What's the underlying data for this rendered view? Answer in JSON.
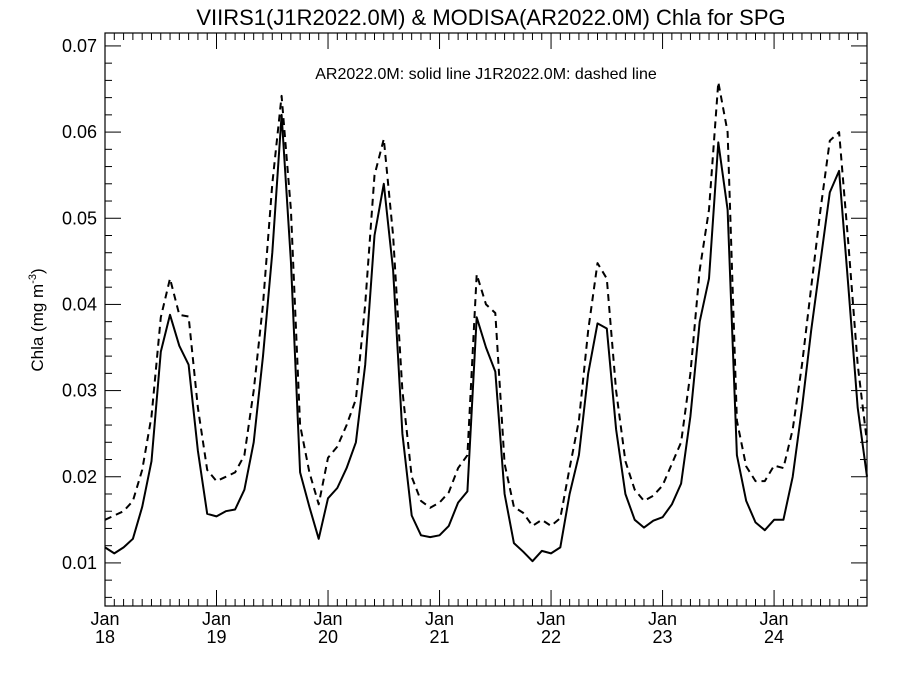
{
  "chart_data": {
    "type": "line",
    "title": "VIIRS1(J1R2022.0M) & MODISA(AR2022.0M)  Chla for SPG",
    "annotation": "AR2022.0M: solid line   J1R2022.0M: dashed line",
    "ylabel_main": "Chla (mg m",
    "ylabel_sup": "-3",
    "ylabel_end": ")",
    "xlabel": "",
    "ylim": [
      0.005,
      0.0715
    ],
    "xlim": [
      0,
      82
    ],
    "yticks": [
      {
        "v": 0.01,
        "label": "0.01"
      },
      {
        "v": 0.02,
        "label": "0.02"
      },
      {
        "v": 0.03,
        "label": "0.03"
      },
      {
        "v": 0.04,
        "label": "0.04"
      },
      {
        "v": 0.05,
        "label": "0.05"
      },
      {
        "v": 0.06,
        "label": "0.06"
      },
      {
        "v": 0.07,
        "label": "0.07"
      }
    ],
    "xticks": [
      {
        "v": 0,
        "month": "Jan",
        "year": "18"
      },
      {
        "v": 12,
        "month": "Jan",
        "year": "19"
      },
      {
        "v": 24,
        "month": "Jan",
        "year": "20"
      },
      {
        "v": 36,
        "month": "Jan",
        "year": "21"
      },
      {
        "v": 48,
        "month": "Jan",
        "year": "22"
      },
      {
        "v": 60,
        "month": "Jan",
        "year": "23"
      },
      {
        "v": 72,
        "month": "Jan",
        "year": "24"
      }
    ],
    "grid": false,
    "series": [
      {
        "style": "solid",
        "color": "#000000",
        "x": [
          0,
          1,
          2,
          3,
          4,
          5,
          6,
          7,
          8,
          9,
          10,
          11,
          12,
          13,
          14,
          15,
          16,
          17,
          18,
          19,
          20,
          21,
          22,
          23,
          24,
          25,
          26,
          27,
          28,
          29,
          30,
          31,
          32,
          33,
          34,
          35,
          36,
          37,
          38,
          39,
          40,
          41,
          42,
          43,
          44,
          45,
          46,
          47,
          48,
          49,
          50,
          51,
          52,
          53,
          54,
          55,
          56,
          57,
          58,
          59,
          60,
          61,
          62,
          63,
          64,
          65,
          66,
          67,
          68,
          69,
          70,
          71,
          72,
          73,
          74,
          75,
          76,
          77,
          78,
          79,
          80,
          81,
          82
        ],
        "values": [
          0.0118,
          0.0111,
          0.0118,
          0.0128,
          0.0165,
          0.0218,
          0.0345,
          0.0388,
          0.0352,
          0.033,
          0.023,
          0.0157,
          0.0154,
          0.016,
          0.0162,
          0.0185,
          0.024,
          0.034,
          0.046,
          0.062,
          0.045,
          0.0205,
          0.0165,
          0.0128,
          0.0175,
          0.0187,
          0.021,
          0.024,
          0.033,
          0.048,
          0.054,
          0.044,
          0.025,
          0.0155,
          0.0132,
          0.013,
          0.0132,
          0.0143,
          0.017,
          0.0183,
          0.0385,
          0.035,
          0.0322,
          0.018,
          0.0123,
          0.0113,
          0.0102,
          0.0114,
          0.0111,
          0.0118,
          0.018,
          0.0225,
          0.032,
          0.0378,
          0.0372,
          0.0255,
          0.018,
          0.015,
          0.0141,
          0.0149,
          0.0153,
          0.0168,
          0.0192,
          0.027,
          0.038,
          0.043,
          0.0588,
          0.051,
          0.0225,
          0.0172,
          0.0147,
          0.0138,
          0.015,
          0.015,
          0.02,
          0.028,
          0.037,
          0.045,
          0.053,
          0.0555,
          0.042,
          0.028,
          0.02
        ]
      },
      {
        "style": "dashed",
        "color": "#000000",
        "x": [
          0,
          1,
          2,
          3,
          4,
          5,
          6,
          7,
          8,
          9,
          10,
          11,
          12,
          13,
          14,
          15,
          16,
          17,
          18,
          19,
          20,
          21,
          22,
          23,
          24,
          25,
          26,
          27,
          28,
          29,
          30,
          31,
          32,
          33,
          34,
          35,
          36,
          37,
          38,
          39,
          40,
          41,
          42,
          43,
          44,
          45,
          46,
          47,
          48,
          49,
          50,
          51,
          52,
          53,
          54,
          55,
          56,
          57,
          58,
          59,
          60,
          61,
          62,
          63,
          64,
          65,
          66,
          67,
          68,
          69,
          70,
          71,
          72,
          73,
          74,
          75,
          76,
          77,
          78,
          79,
          80,
          81,
          82
        ],
        "values": [
          0.015,
          0.0155,
          0.016,
          0.0172,
          0.0208,
          0.027,
          0.0385,
          0.043,
          0.0388,
          0.0386,
          0.028,
          0.0208,
          0.0195,
          0.02,
          0.0205,
          0.0225,
          0.03,
          0.04,
          0.054,
          0.0642,
          0.051,
          0.026,
          0.0205,
          0.0168,
          0.0222,
          0.0235,
          0.026,
          0.029,
          0.04,
          0.055,
          0.0592,
          0.048,
          0.03,
          0.02,
          0.0172,
          0.0164,
          0.017,
          0.0182,
          0.021,
          0.0225,
          0.0435,
          0.04,
          0.039,
          0.0215,
          0.0165,
          0.0158,
          0.0143,
          0.015,
          0.0143,
          0.0152,
          0.021,
          0.0265,
          0.037,
          0.0448,
          0.043,
          0.03,
          0.0218,
          0.0185,
          0.0172,
          0.0178,
          0.019,
          0.0215,
          0.024,
          0.032,
          0.044,
          0.051,
          0.0658,
          0.06,
          0.0265,
          0.0212,
          0.0195,
          0.0195,
          0.0213,
          0.021,
          0.0255,
          0.033,
          0.042,
          0.051,
          0.059,
          0.06,
          0.047,
          0.033,
          0.024
        ]
      }
    ]
  }
}
